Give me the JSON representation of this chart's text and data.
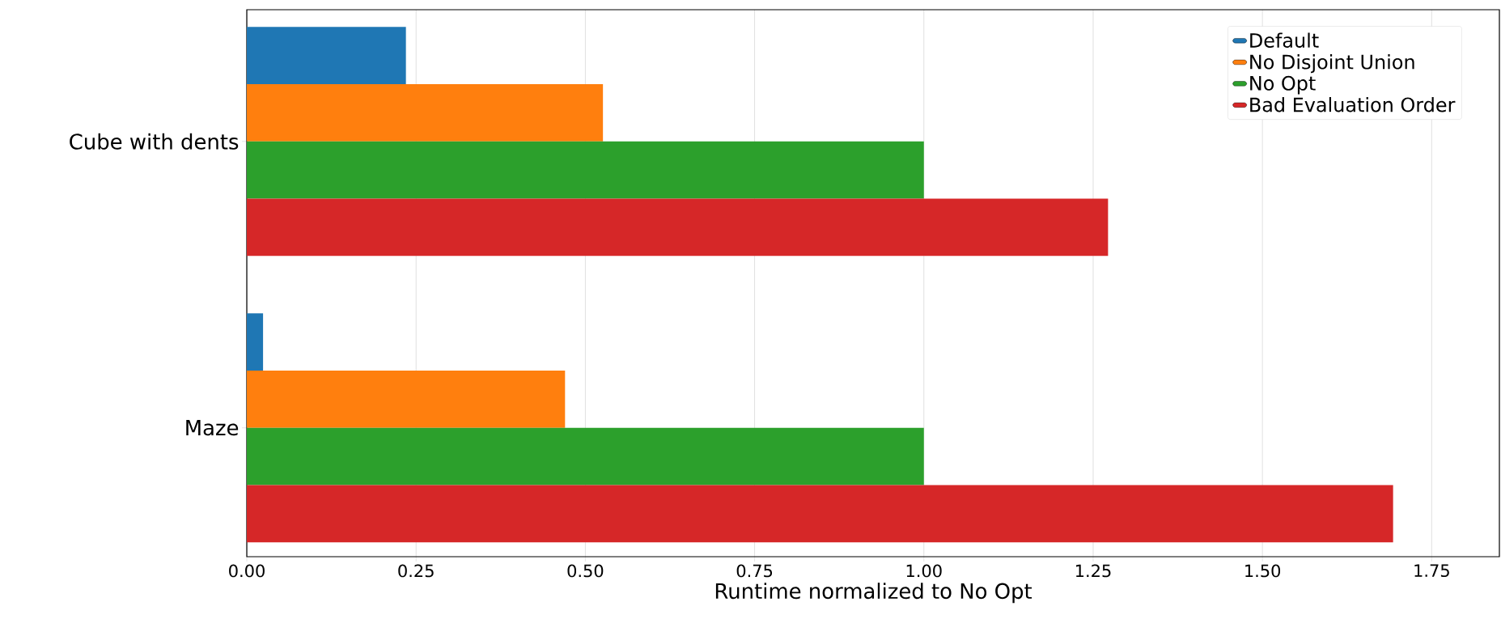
{
  "chart_data": {
    "type": "bar",
    "orientation": "horizontal",
    "xlabel": "Runtime normalized to No Opt",
    "categories": [
      "Cube with dents",
      "Maze"
    ],
    "series": [
      {
        "name": "Default",
        "color": "#1f77b4",
        "values": [
          0.235,
          0.024
        ]
      },
      {
        "name": "No Disjoint Union",
        "color": "#ff7f0e",
        "values": [
          0.526,
          0.47
        ]
      },
      {
        "name": "No Opt",
        "color": "#2ca02c",
        "values": [
          1.0,
          1.0
        ]
      },
      {
        "name": "Bad Evaluation Order",
        "color": "#d62728",
        "values": [
          1.272,
          1.693
        ]
      }
    ],
    "xlim": [
      0,
      1.85
    ],
    "xticks": [
      {
        "value": 0,
        "label": "0.00"
      },
      {
        "value": 0.25,
        "label": "0.25"
      },
      {
        "value": 0.5,
        "label": "0.50"
      },
      {
        "value": 0.75,
        "label": "0.75"
      },
      {
        "value": 1.0,
        "label": "1.00"
      },
      {
        "value": 1.25,
        "label": "1.25"
      },
      {
        "value": 1.5,
        "label": "1.50"
      },
      {
        "value": 1.75,
        "label": "1.75"
      }
    ],
    "grid": "x",
    "legend": "top right"
  }
}
